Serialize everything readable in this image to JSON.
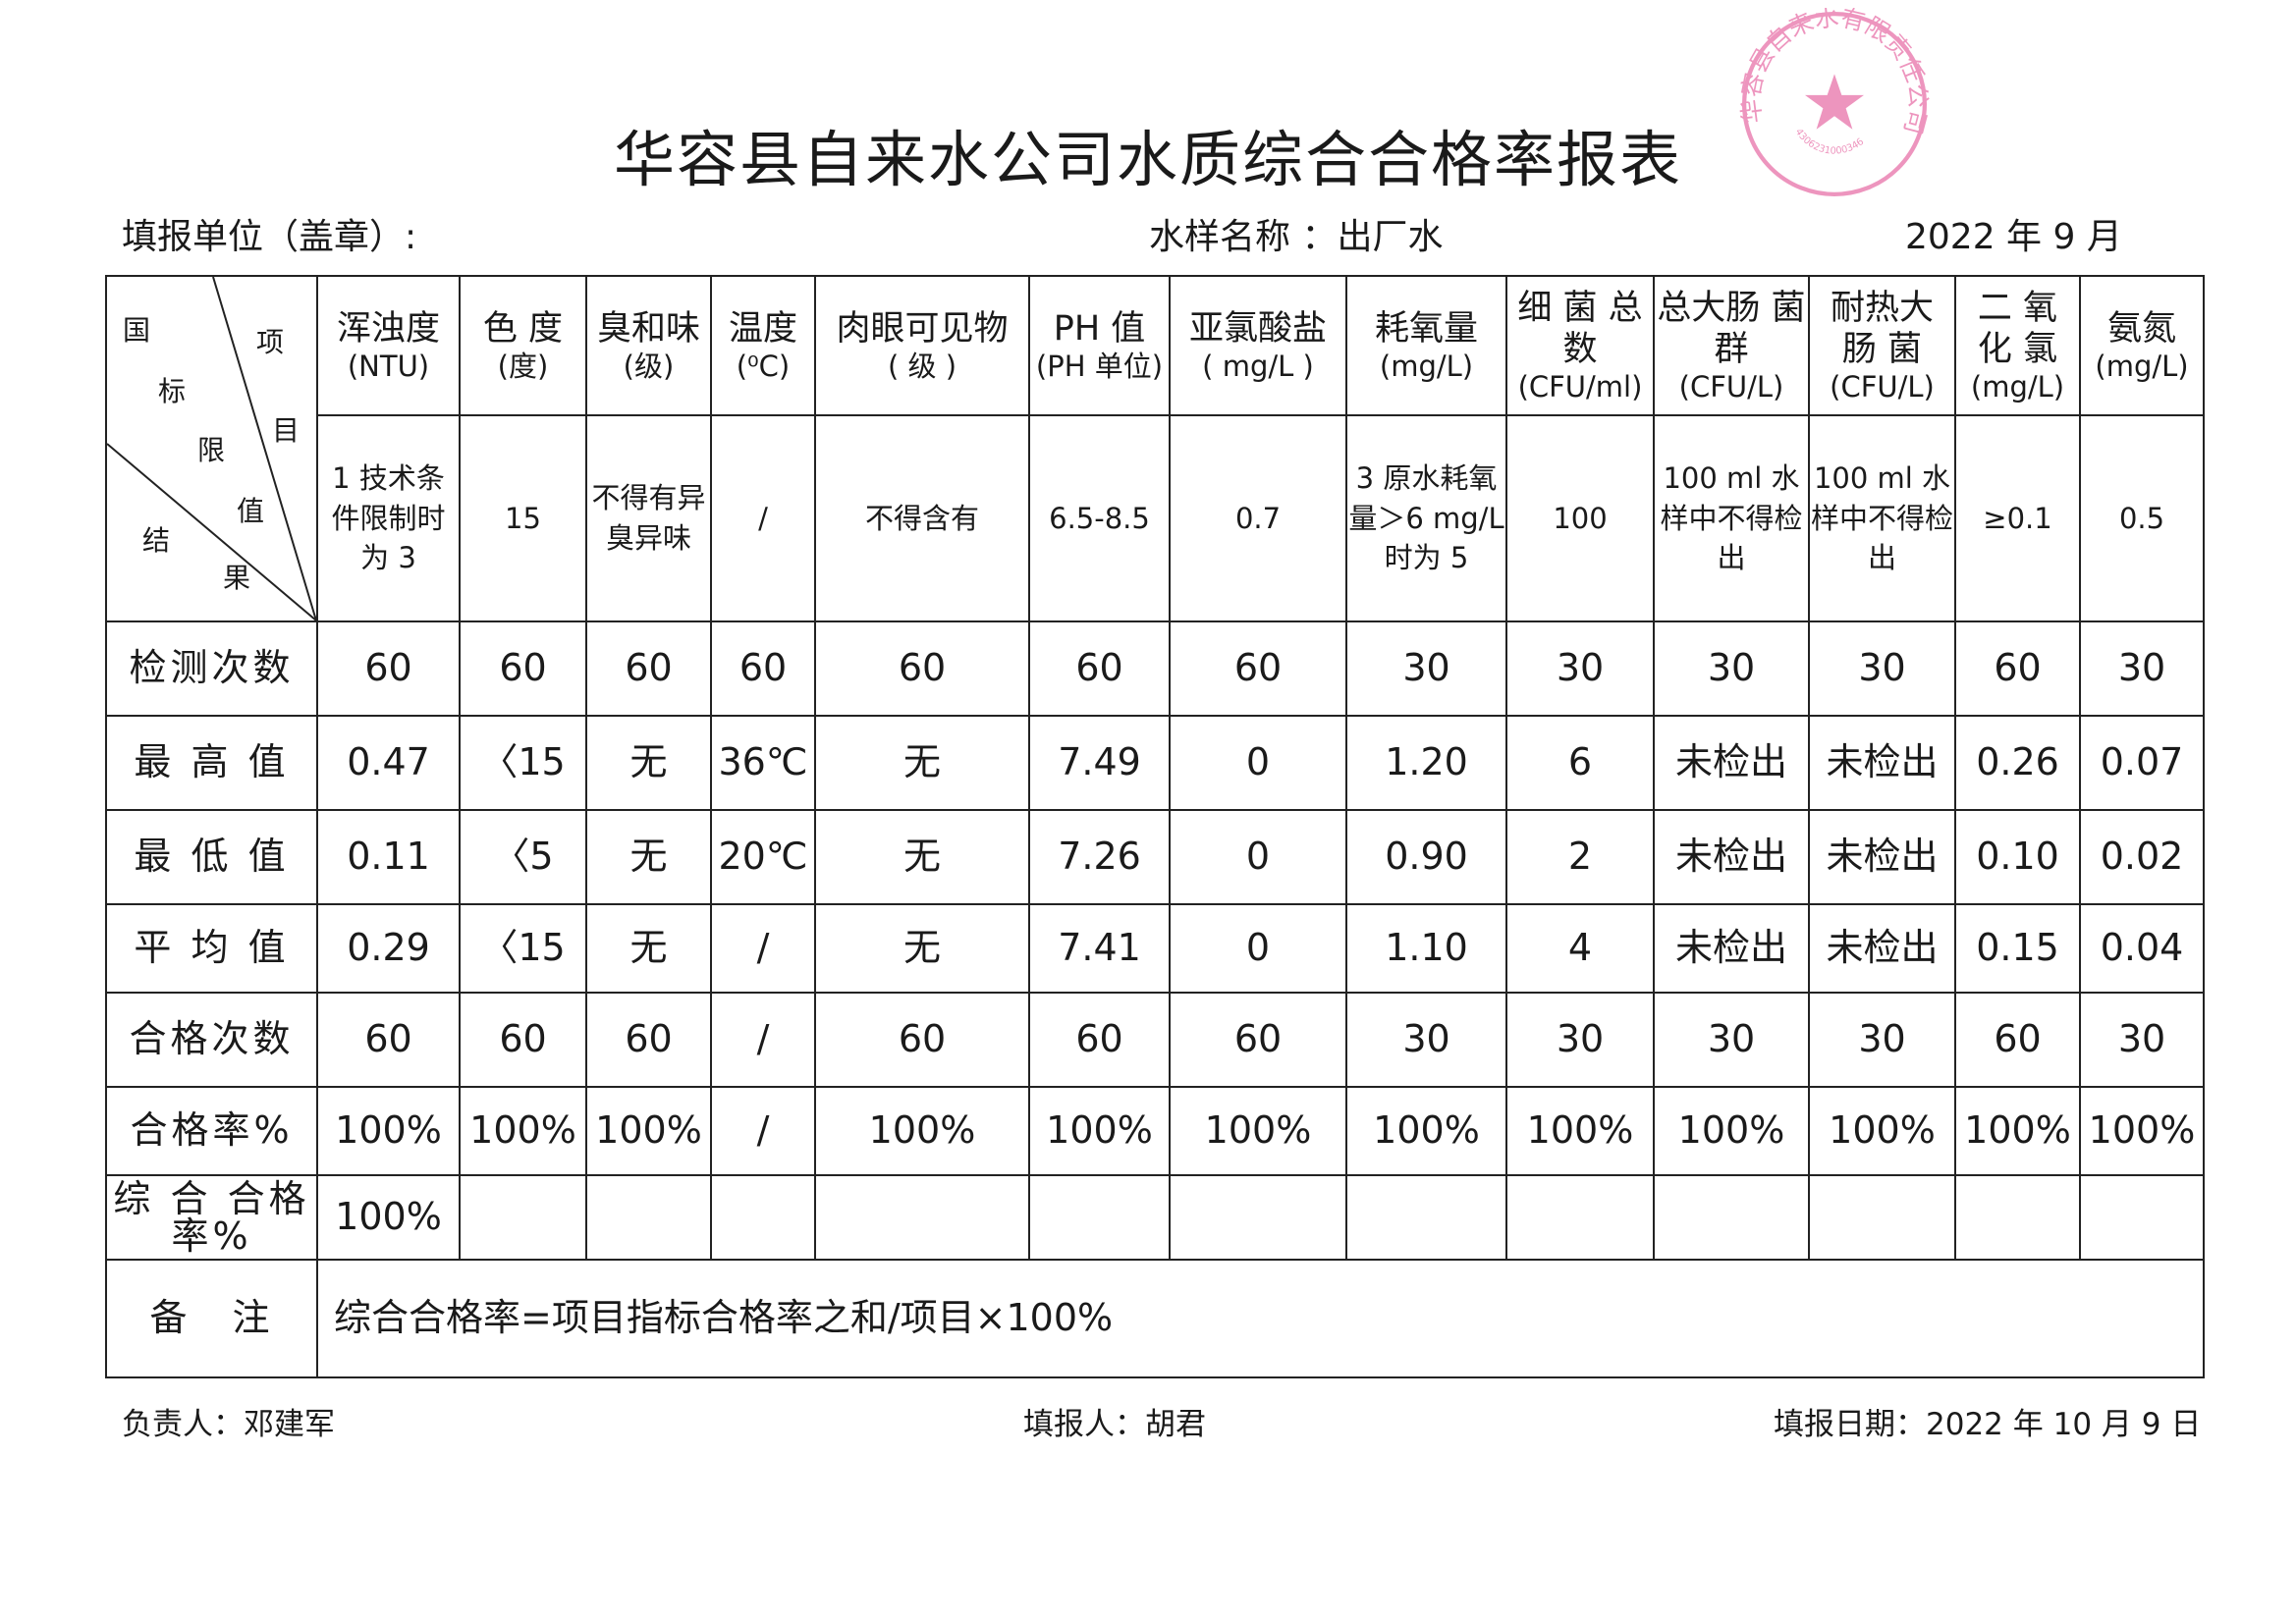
{
  "title": "华容县自来水公司水质综合合格率报表",
  "sub": {
    "unit": "填报单位（盖章）:",
    "sample": "水样名称 ：出厂水",
    "period": "2022 年 9 月"
  },
  "corner": {
    "c1": "国",
    "c2": "标",
    "c3": "限",
    "c4": "值",
    "c5": "结",
    "c6": "果",
    "c7": "项",
    "c8": "目"
  },
  "stamp": {
    "text": "华容县自来水有限责任公司",
    "code": "4306231000346",
    "color": "#e0408a"
  },
  "columns": [
    {
      "name": "浑浊度",
      "unit": "(NTU)"
    },
    {
      "name": "色 度",
      "unit": "(度)"
    },
    {
      "name": "臭和味",
      "unit": "(级)"
    },
    {
      "name": "温度",
      "unit": "(⁰C)"
    },
    {
      "name": "肉眼可见物",
      "unit": "( 级 )"
    },
    {
      "name": "PH 值",
      "unit": "(PH 单位)"
    },
    {
      "name": "亚氯酸盐",
      "unit": "( mg/L )"
    },
    {
      "name": "耗氧量",
      "unit": "(mg/L)"
    },
    {
      "name": "细 菌 总 数",
      "unit": "(CFU/ml)"
    },
    {
      "name": "总大肠 菌 群",
      "unit": "(CFU/L)"
    },
    {
      "name": "耐热大 肠 菌",
      "unit": "(CFU/L)"
    },
    {
      "name": "二 氧 化 氯",
      "unit": "(mg/L)"
    },
    {
      "name": "氨氮",
      "unit": "(mg/L)"
    }
  ],
  "limits": [
    "1 技术条件限制时为 3",
    "15",
    "不得有异臭异味",
    "/",
    "不得含有",
    "6.5-8.5",
    "0.7",
    "3 原水耗氧量＞6 mg/L 时为 5",
    "100",
    "100 ml 水样中不得检出",
    "100 ml 水样中不得检出",
    "≥0.1",
    "0.5"
  ],
  "rows": [
    {
      "label": "检测次数",
      "values": [
        "60",
        "60",
        "60",
        "60",
        "60",
        "60",
        "60",
        "30",
        "30",
        "30",
        "30",
        "60",
        "30"
      ]
    },
    {
      "label": "最 高 值",
      "values": [
        "0.47",
        "〈15",
        "无",
        "36℃",
        "无",
        "7.49",
        "0",
        "1.20",
        "6",
        "未检出",
        "未检出",
        "0.26",
        "0.07"
      ]
    },
    {
      "label": "最 低 值",
      "values": [
        "0.11",
        "〈5",
        "无",
        "20℃",
        "无",
        "7.26",
        "0",
        "0.90",
        "2",
        "未检出",
        "未检出",
        "0.10",
        "0.02"
      ]
    },
    {
      "label": "平 均 值",
      "values": [
        "0.29",
        "〈15",
        "无",
        "/",
        "无",
        "7.41",
        "0",
        "1.10",
        "4",
        "未检出",
        "未检出",
        "0.15",
        "0.04"
      ]
    },
    {
      "label": "合格次数",
      "values": [
        "60",
        "60",
        "60",
        "/",
        "60",
        "60",
        "60",
        "30",
        "30",
        "30",
        "30",
        "60",
        "30"
      ]
    },
    {
      "label": "合格率%",
      "values": [
        "100%",
        "100%",
        "100%",
        "/",
        "100%",
        "100%",
        "100%",
        "100%",
        "100%",
        "100%",
        "100%",
        "100%",
        "100%"
      ]
    }
  ],
  "overall": {
    "label": "综 合 合格率%",
    "value": "100%"
  },
  "remark": {
    "label": "备　注",
    "text": "综合合格率=项目指标合格率之和/项目×100%"
  },
  "footer": {
    "leader": "负责人：邓建军",
    "filler": "填报人：胡君",
    "date": "填报日期：2022 年 10 月 9 日"
  }
}
